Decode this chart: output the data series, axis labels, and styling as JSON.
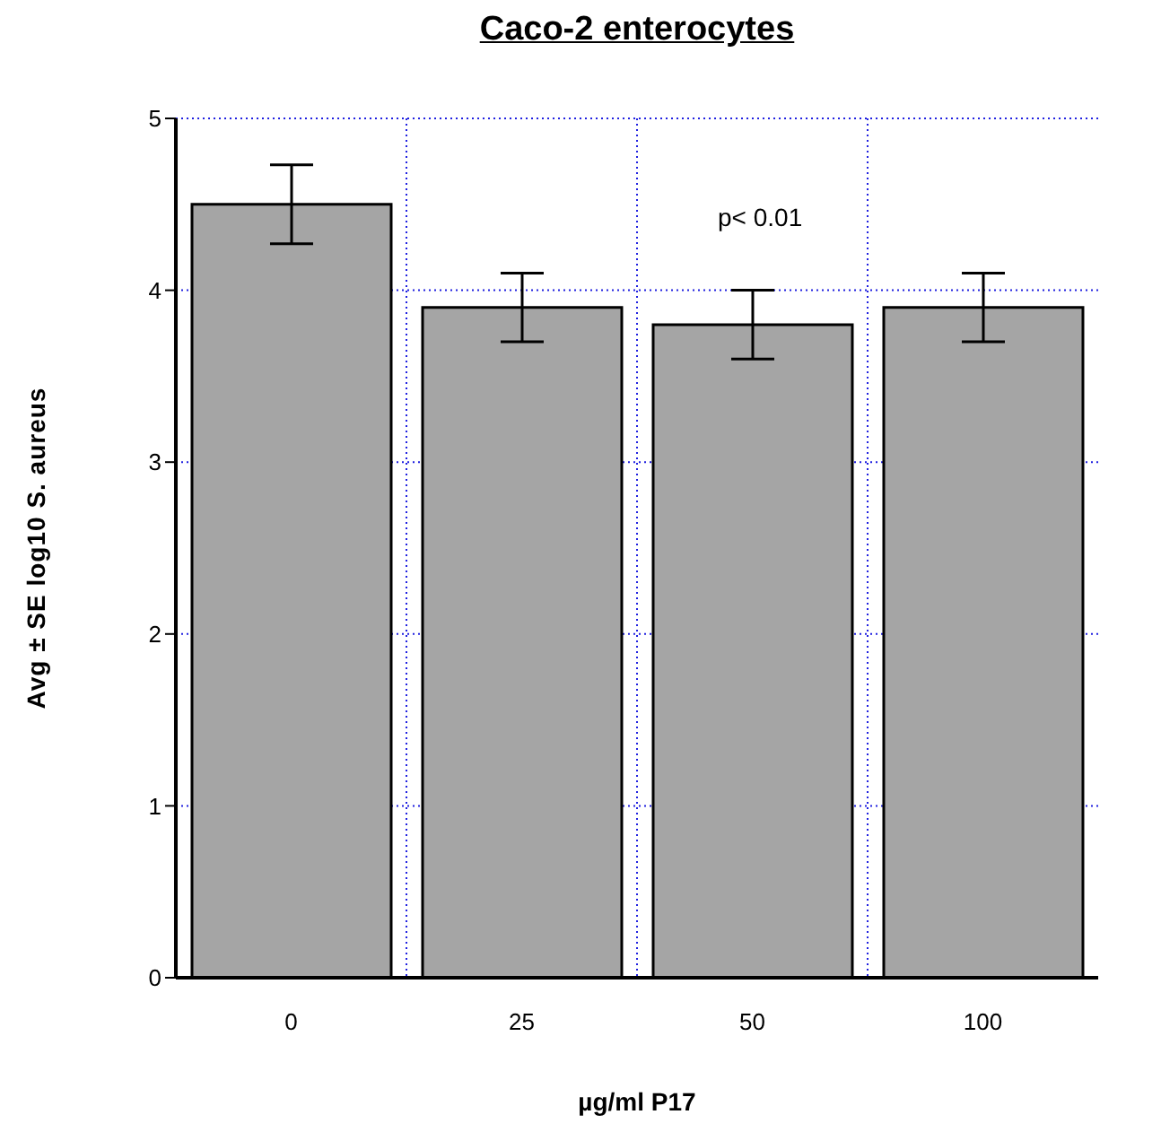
{
  "chart_data": {
    "type": "bar",
    "title": "Caco-2 enterocytes",
    "xlabel": "µg/ml P17",
    "ylabel": "Avg ± SE log10 S. aureus",
    "categories": [
      "0",
      "25",
      "50",
      "100"
    ],
    "values": [
      4.5,
      3.9,
      3.8,
      3.9
    ],
    "errors": [
      [
        4.27,
        4.73
      ],
      [
        3.7,
        4.1
      ],
      [
        3.6,
        4.0
      ],
      [
        3.7,
        4.1
      ]
    ],
    "color": "#a5a5a5",
    "ylim": [
      0,
      5
    ],
    "yticks": [
      0,
      1,
      2,
      3,
      4,
      5
    ],
    "grid": true,
    "annotations": [
      "p< 0.01"
    ]
  }
}
